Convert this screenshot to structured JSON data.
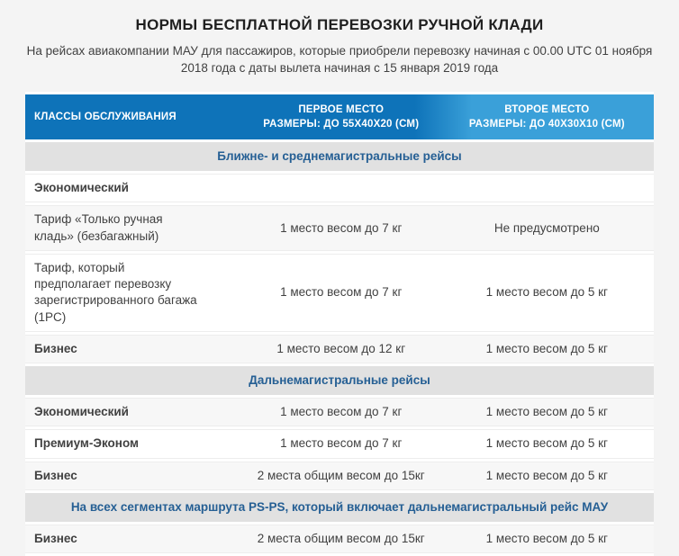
{
  "page": {
    "title": "НОРМЫ БЕСПЛАТНОЙ ПЕРЕВОЗКИ РУЧНОЙ КЛАДИ",
    "subtitle": "На рейсах авиакомпании МАУ для пассажиров, которые приобрели перевозку начиная с 00.00 UTC 01 ноября 2018 года с даты вылета начиная с 15 января 2019 года"
  },
  "colors": {
    "page-bg": "#f4f4f4",
    "title": "#1f1f1f",
    "text": "#414141",
    "header-blue": "#0e73b9",
    "header-blue-light": "#3aa0d9",
    "section-bg": "#e1e1e1",
    "section-text": "#255f94",
    "stripe": "#f7f7f7",
    "row-border": "#ededed"
  },
  "table": {
    "columns": [
      {
        "title": "КЛАССЫ ОБСЛУЖИВАНИЯ",
        "subtitle": ""
      },
      {
        "title": "ПЕРВОЕ МЕСТО",
        "subtitle": "РАЗМЕРЫ: ДО 55X40X20 (СМ)"
      },
      {
        "title": "ВТОРОЕ МЕСТО",
        "subtitle": "РАЗМЕРЫ: ДО 40X30X10 (СМ)"
      }
    ],
    "rows": [
      {
        "type": "section",
        "label": "Ближне- и среднемагистральные рейсы"
      },
      {
        "type": "data",
        "emphasis": true,
        "name": "Экономический",
        "first": "",
        "second": ""
      },
      {
        "type": "data",
        "emphasis": false,
        "name": "Тариф «Только ручная кладь» (безбагажный)",
        "first": "1 место весом до 7 кг",
        "second": "Не предусмотрено"
      },
      {
        "type": "data",
        "emphasis": false,
        "name": "Тариф, который предполагает перевозку зарегистрированного багажа (1PC)",
        "first": "1 место весом до 7 кг",
        "second": "1 место весом до 5 кг"
      },
      {
        "type": "data",
        "emphasis": true,
        "name": "Бизнес",
        "first": "1 место весом до 12 кг",
        "second": "1 место весом до 5 кг"
      },
      {
        "type": "section",
        "label": "Дальнемагистральные рейсы"
      },
      {
        "type": "data",
        "emphasis": true,
        "name": "Экономический",
        "first": "1 место весом до 7 кг",
        "second": "1 место весом до 5 кг"
      },
      {
        "type": "data",
        "emphasis": true,
        "name": "Премиум-Эконом",
        "first": "1 место весом до 7 кг",
        "second": "1 место весом до 5 кг"
      },
      {
        "type": "data",
        "emphasis": true,
        "name": "Бизнес",
        "first": "2 места общим весом до 15кг",
        "second": "1 место весом до 5 кг"
      },
      {
        "type": "section",
        "label": "На всех сегментах маршрута PS-PS, который включает дальнемагистральный рейс МАУ"
      },
      {
        "type": "data",
        "emphasis": true,
        "name": "Бизнес",
        "first": "2 места общим весом до 15кг",
        "second": "1 место весом до 5 кг"
      }
    ]
  }
}
